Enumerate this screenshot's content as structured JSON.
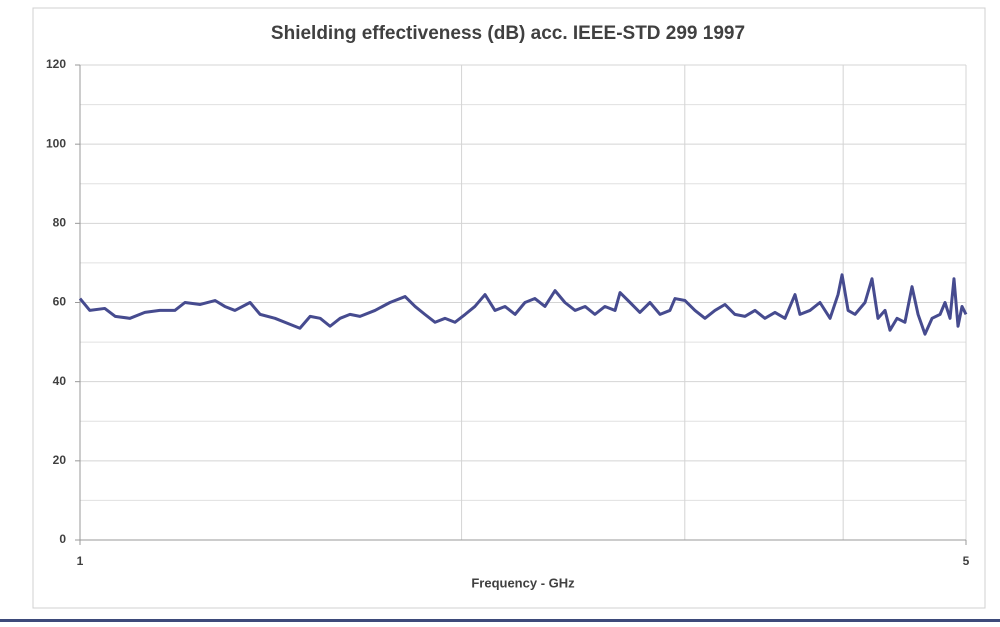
{
  "chart_data": {
    "type": "line",
    "title": "Shielding effectiveness (dB) acc. IEEE-STD 299 1997",
    "x_label": "Frequency - GHz",
    "x_scale": "log",
    "xlim": [
      1,
      5
    ],
    "xticks": [
      1,
      5
    ],
    "xminor_grid": [
      2,
      3,
      4
    ],
    "ylim": [
      0,
      120
    ],
    "yticks": [
      0,
      20,
      40,
      60,
      80,
      100,
      120
    ],
    "yminor_grid": [
      10,
      30,
      50,
      70,
      90,
      110
    ],
    "grid": true,
    "series": [
      {
        "color": "#464b8f",
        "x": [
          1,
          1.018,
          1.046,
          1.066,
          1.095,
          1.125,
          1.156,
          1.188,
          1.21,
          1.244,
          1.278,
          1.301,
          1.325,
          1.362,
          1.387,
          1.425,
          1.464,
          1.491,
          1.519,
          1.547,
          1.575,
          1.604,
          1.633,
          1.663,
          1.709,
          1.756,
          1.805,
          1.838,
          1.871,
          1.906,
          1.941,
          1.976,
          2.013,
          2.049,
          2.087,
          2.125,
          2.164,
          2.204,
          2.244,
          2.285,
          2.327,
          2.37,
          2.413,
          2.458,
          2.503,
          2.548,
          2.595,
          2.643,
          2.667,
          2.716,
          2.765,
          2.816,
          2.868,
          2.92,
          2.947,
          3.001,
          3.056,
          3.112,
          3.169,
          3.227,
          3.286,
          3.347,
          3.408,
          3.47,
          3.534,
          3.599,
          3.665,
          3.698,
          3.766,
          3.835,
          3.906,
          3.963,
          3.992,
          4.036,
          4.087,
          4.162,
          4.215,
          4.261,
          4.316,
          4.355,
          4.411,
          4.475,
          4.533,
          4.583,
          4.641,
          4.701,
          4.77,
          4.813,
          4.857,
          4.892,
          4.928,
          4.964,
          5
        ],
        "values": [
          61,
          58,
          58.5,
          56.5,
          56,
          57.5,
          58,
          58,
          60,
          59.5,
          60.5,
          59,
          58,
          60,
          57,
          56,
          54.5,
          53.5,
          56.5,
          56,
          54,
          56,
          57,
          56.5,
          58,
          60,
          61.5,
          59,
          57,
          55,
          56,
          55,
          57,
          59,
          62,
          58,
          59,
          57,
          60,
          61,
          59,
          63,
          60,
          58,
          59,
          57,
          59,
          58,
          62.5,
          60,
          57.5,
          60,
          57,
          58,
          61,
          60.5,
          58,
          56,
          58,
          59.5,
          57,
          56.5,
          58,
          56,
          57.5,
          56,
          62,
          57,
          58,
          60,
          56,
          62,
          67,
          58,
          57,
          60,
          66,
          56,
          58,
          53,
          56,
          55,
          64,
          57,
          52,
          56,
          57,
          60,
          56,
          66,
          54,
          59,
          57
        ]
      }
    ]
  }
}
